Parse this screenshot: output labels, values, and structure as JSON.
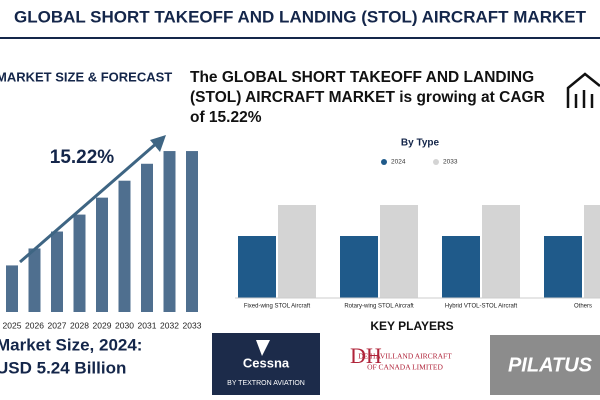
{
  "header": {
    "title": "GLOBAL SHORT TAKEOFF AND LANDING (STOL) AIRCRAFT MARKET"
  },
  "left_panel": {
    "heading": "MARKET SIZE & FORECAST",
    "cagr_label": "15.22%",
    "market_size_label": "Market Size, 2024:",
    "market_size_value": "USD 5.24 Billion"
  },
  "headline": [
    "The GLOBAL SHORT TAKEOFF AND LANDING",
    "(STOL) AIRCRAFT MARKET is growing at CAGR",
    "of 15.22%"
  ],
  "chart_data": [
    {
      "type": "bar",
      "categories": [
        "2025",
        "2026",
        "2027",
        "2028",
        "2029",
        "2030",
        "2031",
        "2032",
        "2033"
      ],
      "values": [
        44,
        60,
        76,
        92,
        108,
        124,
        140,
        152,
        152
      ],
      "color": "#4f6f8f",
      "ylim": [
        0,
        170
      ]
    },
    {
      "type": "grouped_bar",
      "title": "By Type",
      "categories": [
        "Fixed-wing STOL Aircraft",
        "Rotary-wing STOL Aircraft",
        "Hybrid VTOL-STOL Aircraft",
        "Others"
      ],
      "series": [
        {
          "name": "2024",
          "color": "#1f5a8a",
          "values": [
            62,
            62,
            62,
            62
          ]
        },
        {
          "name": "2033",
          "color": "#d4d4d4",
          "values": [
            93,
            93,
            93,
            93
          ]
        }
      ],
      "ylim": [
        0,
        100
      ]
    }
  ],
  "key_players": {
    "title": "KEY PLAYERS",
    "logos": [
      "Cessna",
      "BY TEXTRON AVIATION",
      "DE HAVILLAND AIRCRAFT",
      "OF CANADA LIMITED",
      "PILATUS"
    ]
  }
}
